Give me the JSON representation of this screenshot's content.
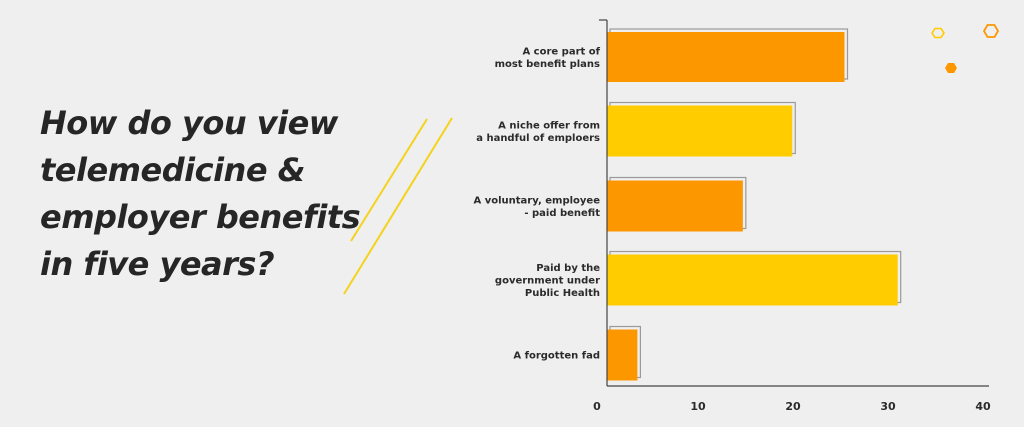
{
  "question": {
    "lines": [
      "How do you view",
      "telemedicine &",
      "employer benefits",
      "in five years?"
    ]
  },
  "colors": {
    "orange": "#fd9700",
    "yellow": "#ffcc00",
    "decor_line": "#f5d21c",
    "axis": "#444444",
    "text": "#262626"
  },
  "chart_data": {
    "type": "bar",
    "orientation": "horizontal",
    "categories": [
      [
        "A core part of",
        "most benefit plans"
      ],
      [
        "A niche offer from",
        "a handful of emploers"
      ],
      [
        "A voluntary, employee",
        "- paid benefit"
      ],
      [
        "Paid by the",
        "government under",
        "Public Health"
      ],
      [
        "A forgotten fad"
      ]
    ],
    "values": [
      25,
      19.5,
      14.3,
      30.6,
      3.2
    ],
    "bar_colors": [
      "#fd9700",
      "#ffcc00",
      "#fd9700",
      "#ffcc00",
      "#fd9700"
    ],
    "xticks": [
      0,
      10,
      20,
      30,
      40
    ],
    "xlim": [
      0,
      40
    ],
    "grid": false
  }
}
